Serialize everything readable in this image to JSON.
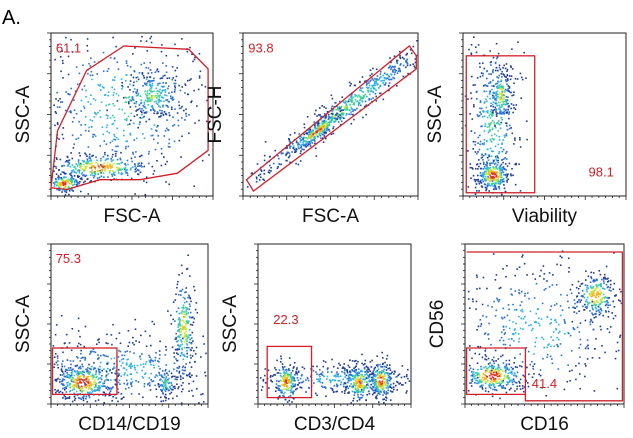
{
  "figure": {
    "panel_label": "A.",
    "gate_color": "#d0202a",
    "frame_color": "#222222",
    "density_colors": [
      "#1f3a93",
      "#2a6fd6",
      "#2bb0e8",
      "#3fd19a",
      "#c9e83a",
      "#f5b21a",
      "#e0321e"
    ]
  },
  "chart_data": [
    {
      "type": "scatter",
      "title": "",
      "xlabel": "FSC-A",
      "ylabel": "SSC-A",
      "gate": {
        "shape": "polygon",
        "percentage": "61.1",
        "label_position": "top-left"
      },
      "populations": [
        {
          "cx": 0.45,
          "cy": 0.55,
          "sx": 0.3,
          "sy": 0.25,
          "n": 500,
          "peak": 0.45,
          "tilt": 0
        },
        {
          "cx": 0.62,
          "cy": 0.62,
          "sx": 0.09,
          "sy": 0.07,
          "n": 220,
          "peak": 0.55,
          "tilt": 0
        },
        {
          "cx": 0.3,
          "cy": 0.18,
          "sx": 0.16,
          "sy": 0.04,
          "n": 300,
          "peak": 0.85,
          "tilt": 0
        },
        {
          "cx": 0.08,
          "cy": 0.08,
          "sx": 0.05,
          "sy": 0.03,
          "n": 160,
          "peak": 0.95,
          "tilt": 0
        }
      ]
    },
    {
      "type": "scatter",
      "title": "",
      "xlabel": "FSC-A",
      "ylabel": "FSC-H",
      "gate": {
        "shape": "diagonal-band",
        "percentage": "93.8",
        "label_position": "top-left"
      },
      "populations": [
        {
          "cx": 0.55,
          "cy": 0.52,
          "sx": 0.28,
          "sy": 0.05,
          "n": 620,
          "peak": 0.55,
          "tilt": 0.8
        },
        {
          "cx": 0.42,
          "cy": 0.4,
          "sx": 0.07,
          "sy": 0.025,
          "n": 200,
          "peak": 0.92,
          "tilt": 0.8
        }
      ]
    },
    {
      "type": "scatter",
      "title": "",
      "xlabel": "Viability",
      "ylabel": "SSC-A",
      "gate": {
        "shape": "rectangle",
        "percentage": "98.1",
        "label_position": "bottom-right"
      },
      "populations": [
        {
          "cx": 0.18,
          "cy": 0.45,
          "sx": 0.08,
          "sy": 0.28,
          "n": 420,
          "peak": 0.45,
          "tilt": 0
        },
        {
          "cx": 0.23,
          "cy": 0.62,
          "sx": 0.03,
          "sy": 0.08,
          "n": 150,
          "peak": 0.7,
          "tilt": 0
        },
        {
          "cx": 0.18,
          "cy": 0.13,
          "sx": 0.05,
          "sy": 0.05,
          "n": 240,
          "peak": 0.97,
          "tilt": 0
        }
      ]
    },
    {
      "type": "scatter",
      "title": "",
      "xlabel": "CD14/CD19",
      "ylabel": "SSC-A",
      "gate": {
        "shape": "rectangle",
        "percentage": "75.3",
        "label_position": "top-left"
      },
      "populations": [
        {
          "cx": 0.45,
          "cy": 0.22,
          "sx": 0.35,
          "sy": 0.12,
          "n": 520,
          "peak": 0.35,
          "tilt": 0
        },
        {
          "cx": 0.2,
          "cy": 0.14,
          "sx": 0.09,
          "sy": 0.06,
          "n": 320,
          "peak": 0.96,
          "tilt": 0
        },
        {
          "cx": 0.84,
          "cy": 0.48,
          "sx": 0.035,
          "sy": 0.16,
          "n": 230,
          "peak": 0.7,
          "tilt": 0
        },
        {
          "cx": 0.73,
          "cy": 0.13,
          "sx": 0.03,
          "sy": 0.04,
          "n": 70,
          "peak": 0.55,
          "tilt": 0
        }
      ]
    },
    {
      "type": "scatter",
      "title": "",
      "xlabel": "CD3/CD4",
      "ylabel": "SSC-A",
      "gate": {
        "shape": "rectangle",
        "percentage": "22.3",
        "label_position": "middle-left"
      },
      "populations": [
        {
          "cx": 0.55,
          "cy": 0.16,
          "sx": 0.3,
          "sy": 0.05,
          "n": 360,
          "peak": 0.35,
          "tilt": 0
        },
        {
          "cx": 0.18,
          "cy": 0.14,
          "sx": 0.04,
          "sy": 0.06,
          "n": 170,
          "peak": 0.85,
          "tilt": 0
        },
        {
          "cx": 0.66,
          "cy": 0.14,
          "sx": 0.05,
          "sy": 0.06,
          "n": 200,
          "peak": 0.85,
          "tilt": 0
        },
        {
          "cx": 0.8,
          "cy": 0.15,
          "sx": 0.04,
          "sy": 0.06,
          "n": 200,
          "peak": 0.92,
          "tilt": 0
        }
      ]
    },
    {
      "type": "scatter",
      "title": "",
      "xlabel": "CD16",
      "ylabel": "CD56",
      "gate": {
        "shape": "step",
        "percentage": "41.4",
        "label_position": "bottom-center"
      },
      "populations": [
        {
          "cx": 0.45,
          "cy": 0.48,
          "sx": 0.3,
          "sy": 0.22,
          "n": 420,
          "peak": 0.35,
          "tilt": 0
        },
        {
          "cx": 0.82,
          "cy": 0.68,
          "sx": 0.06,
          "sy": 0.07,
          "n": 220,
          "peak": 0.82,
          "tilt": 0
        },
        {
          "cx": 0.17,
          "cy": 0.18,
          "sx": 0.1,
          "sy": 0.05,
          "n": 300,
          "peak": 0.96,
          "tilt": 0
        }
      ]
    }
  ]
}
